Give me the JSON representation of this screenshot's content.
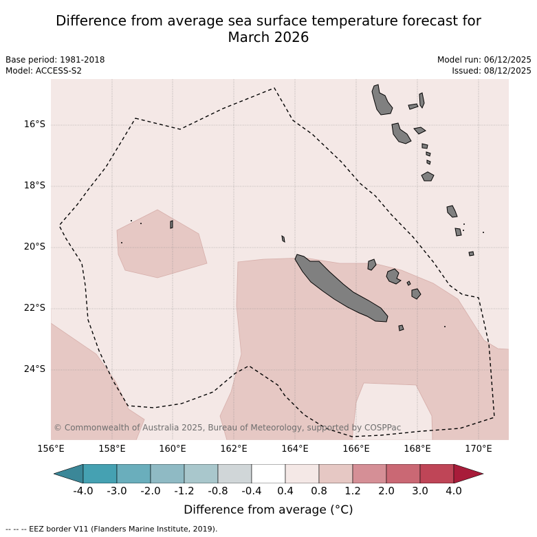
{
  "title": {
    "line1": "Difference from average sea surface temperature forecast for",
    "line2": "March 2026"
  },
  "meta": {
    "base_period": "Base period: 1981-2018",
    "model": "Model: ACCESS-S2",
    "model_run": "Model run: 06/12/2025",
    "issued": "Issued: 08/12/2025"
  },
  "map": {
    "lat_labels": [
      "16°S",
      "18°S",
      "20°S",
      "22°S",
      "24°S"
    ],
    "lon_labels": [
      "156°E",
      "158°E",
      "160°E",
      "162°E",
      "164°E",
      "166°E",
      "168°E",
      "170°E"
    ],
    "copyright": "© Commonwealth of Australia 2025, Bureau of Meteorology, supported by COSPPac",
    "colors": {
      "background_anomaly": "#f4e8e6",
      "warm_anomaly": "#e6c8c4",
      "land": "#808080",
      "grid": "#888888"
    }
  },
  "colorbar": {
    "tick_labels": [
      "-4.0",
      "-3.0",
      "-2.0",
      "-1.2",
      "-0.8",
      "-0.4",
      "0.4",
      "0.8",
      "1.2",
      "2.0",
      "3.0",
      "4.0"
    ],
    "colors": [
      "#3b8798",
      "#45a1b2",
      "#6aaebc",
      "#8fbac4",
      "#a9c7cc",
      "#d0d6d8",
      "#ffffff",
      "#f4e8e6",
      "#e6c8c4",
      "#d58f96",
      "#ca6874",
      "#bf4557",
      "#a81c3a"
    ],
    "title": "Difference from average (°C)"
  },
  "footnote": "--  --  -- EEZ border V11 (Flanders Marine Institute, 2019)."
}
